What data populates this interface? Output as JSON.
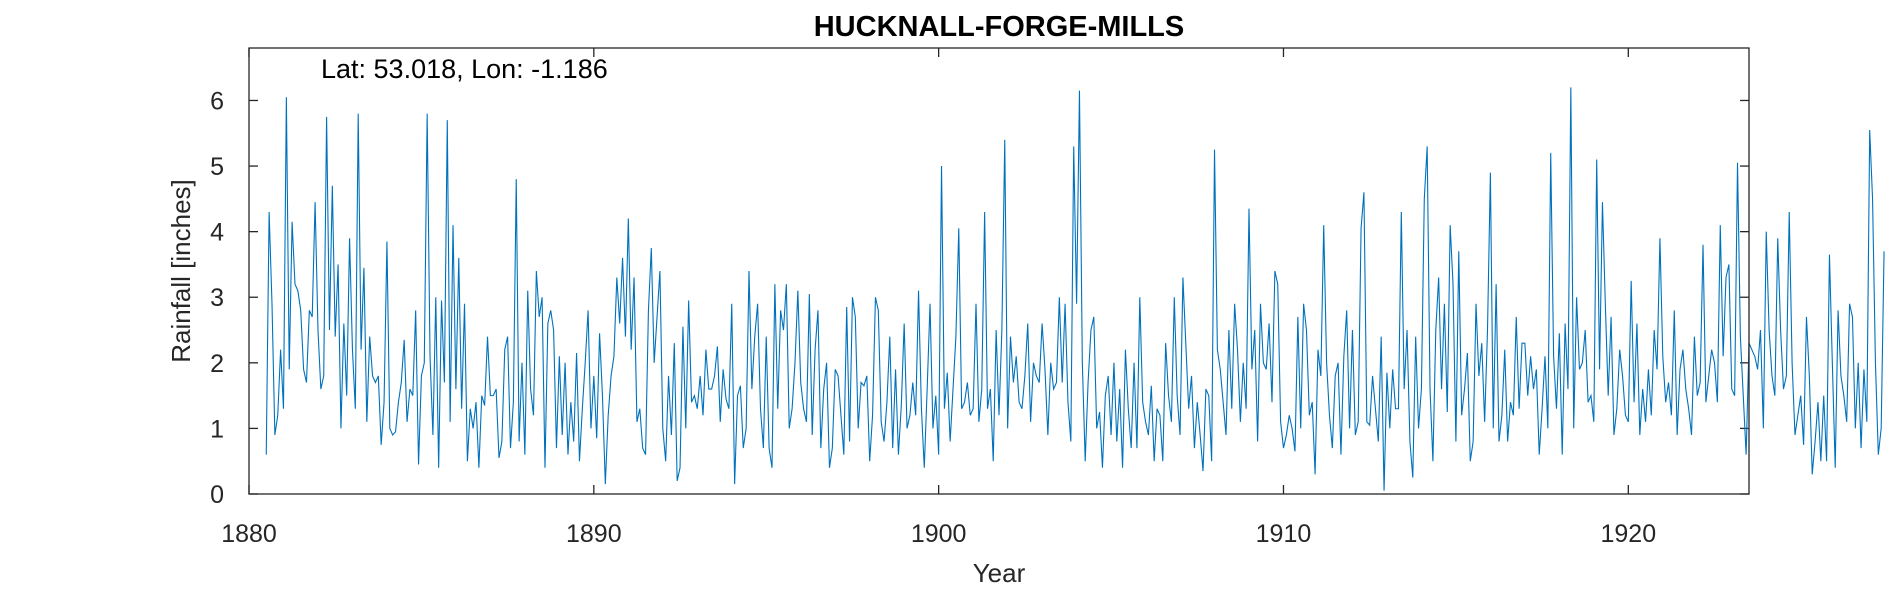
{
  "chart_data": {
    "type": "line",
    "title": "HUCKNALL-FORGE-MILLS",
    "annotation": "Lat: 53.018, Lon: -1.186",
    "xlabel": "Year",
    "ylabel": "Rainfall [inches]",
    "xlim": [
      1880,
      1923.5
    ],
    "ylim": [
      0,
      6.8
    ],
    "x_ticks": [
      1880,
      1890,
      1900,
      1910,
      1920
    ],
    "y_ticks": [
      0,
      1,
      2,
      3,
      4,
      5,
      6
    ],
    "grid": false,
    "box": true,
    "series": [
      {
        "color": "#0072BD",
        "x_start": 1880.5,
        "x_step_months": 1,
        "values": [
          0.6,
          4.3,
          2.9,
          0.9,
          1.2,
          2.2,
          1.3,
          6.05,
          1.9,
          4.15,
          3.2,
          3.1,
          2.8,
          1.9,
          1.7,
          2.8,
          2.7,
          4.45,
          2.5,
          1.6,
          1.8,
          5.75,
          2.5,
          4.7,
          2.4,
          3.5,
          1.0,
          2.6,
          1.5,
          3.9,
          2.2,
          1.3,
          5.8,
          2.2,
          3.45,
          1.1,
          2.4,
          1.8,
          1.7,
          1.8,
          0.75,
          1.4,
          3.85,
          1.0,
          0.9,
          0.95,
          1.4,
          1.7,
          2.35,
          1.1,
          1.6,
          1.5,
          2.8,
          0.45,
          1.8,
          2.0,
          5.8,
          2.1,
          0.9,
          3.0,
          0.4,
          2.95,
          1.7,
          5.7,
          1.1,
          4.1,
          1.6,
          3.6,
          1.3,
          2.9,
          0.5,
          1.3,
          1.0,
          1.4,
          0.4,
          1.5,
          1.35,
          2.4,
          1.5,
          1.5,
          1.6,
          0.55,
          0.8,
          2.2,
          2.4,
          0.7,
          1.4,
          4.8,
          0.8,
          2.0,
          0.6,
          3.1,
          1.6,
          1.2,
          3.4,
          2.7,
          3.0,
          0.4,
          2.6,
          2.8,
          2.5,
          0.7,
          2.1,
          0.9,
          2.0,
          0.6,
          1.4,
          0.8,
          2.15,
          0.5,
          1.3,
          2.0,
          2.8,
          1.0,
          1.8,
          0.85,
          2.45,
          1.5,
          0.15,
          1.2,
          1.8,
          2.1,
          3.3,
          2.6,
          3.6,
          2.4,
          4.2,
          2.2,
          3.3,
          1.1,
          1.3,
          0.7,
          0.6,
          2.8,
          3.75,
          2.0,
          2.7,
          3.4,
          1.0,
          0.5,
          1.8,
          0.9,
          2.3,
          0.2,
          0.4,
          2.55,
          1.0,
          2.95,
          1.4,
          1.5,
          1.3,
          1.8,
          1.2,
          2.2,
          1.6,
          1.6,
          1.8,
          2.25,
          1.1,
          1.9,
          1.45,
          1.3,
          2.9,
          0.15,
          1.5,
          1.65,
          0.7,
          1.0,
          3.4,
          1.6,
          2.4,
          2.9,
          1.3,
          0.7,
          2.4,
          0.7,
          0.4,
          3.2,
          1.3,
          2.8,
          2.5,
          3.2,
          1.0,
          1.3,
          2.0,
          3.1,
          1.7,
          1.3,
          1.1,
          3.05,
          0.9,
          2.2,
          2.8,
          0.7,
          1.6,
          2.0,
          0.4,
          0.7,
          1.9,
          1.8,
          1.2,
          0.6,
          2.85,
          0.8,
          3.0,
          2.7,
          1.0,
          1.7,
          1.65,
          1.8,
          0.5,
          1.2,
          3.0,
          2.8,
          1.1,
          0.8,
          1.4,
          2.4,
          0.7,
          1.9,
          0.6,
          1.35,
          2.6,
          1.0,
          1.2,
          1.7,
          1.2,
          3.1,
          1.3,
          0.4,
          1.6,
          2.9,
          1.0,
          1.5,
          0.6,
          5.0,
          1.3,
          1.85,
          0.8,
          1.6,
          2.4,
          4.05,
          1.3,
          1.4,
          1.7,
          1.2,
          1.3,
          2.9,
          1.1,
          1.6,
          4.3,
          1.3,
          1.6,
          0.5,
          2.5,
          1.2,
          2.5,
          5.4,
          1.0,
          2.4,
          1.7,
          2.1,
          1.4,
          1.3,
          1.8,
          2.6,
          1.1,
          2.0,
          1.8,
          1.7,
          2.6,
          1.9,
          0.9,
          2.0,
          1.6,
          1.7,
          3.0,
          1.7,
          2.9,
          1.4,
          0.8,
          5.3,
          2.9,
          6.15,
          2.0,
          0.5,
          1.7,
          2.5,
          2.7,
          1.0,
          1.25,
          0.4,
          1.5,
          1.8,
          0.9,
          2.0,
          0.8,
          1.6,
          0.4,
          2.2,
          1.3,
          0.7,
          2.0,
          0.7,
          3.0,
          1.4,
          1.1,
          0.9,
          1.65,
          0.5,
          1.3,
          1.2,
          0.5,
          2.3,
          1.5,
          1.1,
          3.0,
          1.5,
          0.9,
          3.3,
          2.3,
          1.3,
          1.8,
          0.7,
          1.4,
          0.9,
          0.35,
          1.6,
          1.5,
          0.5,
          5.25,
          2.2,
          1.9,
          1.4,
          0.9,
          2.5,
          1.3,
          2.9,
          2.2,
          1.1,
          2.0,
          1.3,
          4.35,
          1.9,
          2.5,
          0.8,
          2.9,
          2.0,
          1.9,
          2.6,
          1.4,
          3.4,
          3.2,
          1.1,
          0.7,
          0.9,
          1.2,
          1.0,
          0.65,
          2.7,
          1.0,
          2.9,
          2.5,
          1.2,
          1.4,
          0.3,
          2.2,
          1.8,
          4.1,
          2.0,
          1.2,
          0.7,
          1.8,
          2.0,
          0.6,
          2.1,
          2.8,
          1.0,
          2.5,
          0.9,
          1.1,
          4.05,
          4.6,
          1.1,
          1.05,
          1.8,
          1.3,
          0.8,
          2.4,
          0.05,
          1.85,
          1.0,
          1.9,
          1.3,
          1.3,
          4.3,
          1.6,
          2.5,
          0.8,
          0.25,
          2.4,
          1.0,
          1.6,
          4.5,
          5.3,
          1.6,
          0.5,
          2.5,
          3.3,
          1.6,
          2.9,
          1.25,
          4.1,
          3.2,
          0.8,
          3.7,
          1.2,
          1.6,
          2.15,
          0.5,
          0.8,
          2.9,
          1.8,
          2.3,
          1.1,
          2.5,
          4.9,
          1.0,
          3.2,
          0.8,
          1.2,
          2.2,
          0.8,
          1.4,
          1.2,
          2.7,
          1.3,
          2.3,
          2.3,
          1.5,
          2.1,
          1.6,
          1.9,
          0.6,
          1.3,
          2.1,
          1.0,
          5.2,
          2.1,
          1.3,
          2.45,
          0.6,
          2.6,
          1.6,
          6.2,
          1.0,
          3.0,
          1.9,
          2.0,
          2.5,
          1.4,
          1.5,
          1.1,
          5.1,
          1.9,
          4.45,
          2.9,
          1.5,
          2.7,
          0.9,
          1.3,
          2.2,
          1.8,
          1.2,
          1.1,
          3.25,
          1.4,
          2.6,
          0.9,
          1.6,
          1.1,
          1.9,
          1.2,
          2.5,
          1.9,
          3.9,
          2.1,
          1.4,
          1.7,
          1.2,
          2.8,
          0.9,
          1.9,
          2.2,
          1.6,
          1.3,
          0.9,
          2.4,
          1.5,
          1.7,
          3.8,
          1.4,
          1.8,
          2.2,
          2.0,
          1.4,
          4.1,
          2.1,
          3.3,
          3.5,
          1.6,
          1.5,
          5.05,
          2.4,
          1.5,
          0.6,
          2.3,
          2.2,
          2.1,
          1.9,
          2.5,
          1.0,
          4.0,
          2.5,
          1.8,
          1.5,
          3.9,
          2.5,
          1.6,
          1.8,
          4.3,
          2.0,
          0.9,
          1.2,
          1.5,
          0.75,
          2.7,
          1.8,
          0.3,
          0.8,
          1.4,
          0.5,
          1.5,
          0.5,
          3.65,
          2.0,
          0.4,
          2.8,
          1.8,
          1.5,
          1.1,
          2.9,
          2.7,
          1.0,
          2.0,
          0.7,
          1.9,
          1.1,
          5.55,
          4.5,
          2.0,
          0.6,
          1.0,
          3.7
        ]
      }
    ]
  }
}
